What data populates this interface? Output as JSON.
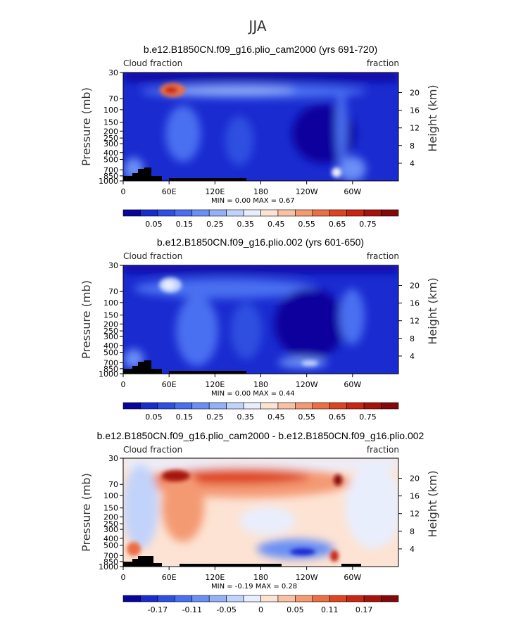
{
  "page": {
    "title": "JJA"
  },
  "chart_data": [
    {
      "type": "heatmap",
      "title": "b.e12.B1850CN.f09_g16.plio_cam2000 (yrs 691-720)",
      "left_label": "Cloud fraction",
      "right_label": "fraction",
      "ylabel": "Pressure (mb)",
      "y2label": "Height (km)",
      "x_ticks": [
        "0",
        "60E",
        "120E",
        "180",
        "120W",
        "60W"
      ],
      "y_ticks": [
        "30",
        "70",
        "100",
        "150",
        "200",
        "250",
        "300",
        "400",
        "500",
        "700",
        "850",
        "1000"
      ],
      "y2_ticks": [
        "20",
        "16",
        "12",
        "8",
        "4"
      ],
      "minmax": "MIN = 0.00 MAX = 0.67",
      "colorbar_labels": [
        "0.05",
        "0.15",
        "0.25",
        "0.35",
        "0.45",
        "0.55",
        "0.65",
        "0.75"
      ],
      "colorbar_colors": [
        "#08059c",
        "#1a2bd0",
        "#2e4fe0",
        "#4a6ff0",
        "#6b8ff5",
        "#93b0f8",
        "#c1d3fb",
        "#e9eefd",
        "#fde3d3",
        "#f9c1a4",
        "#f49a73",
        "#ec6e44",
        "#dd4421",
        "#c72612",
        "#a6130a",
        "#84080a"
      ]
    },
    {
      "type": "heatmap",
      "title": "b.e12.B1850CN.f09_g16.plio.002 (yrs 601-650)",
      "left_label": "Cloud fraction",
      "right_label": "fraction",
      "ylabel": "Pressure (mb)",
      "y2label": "Height (km)",
      "x_ticks": [
        "0",
        "60E",
        "120E",
        "180",
        "120W",
        "60W"
      ],
      "y_ticks": [
        "30",
        "70",
        "100",
        "150",
        "200",
        "250",
        "300",
        "400",
        "500",
        "700",
        "850",
        "1000"
      ],
      "y2_ticks": [
        "20",
        "16",
        "12",
        "8",
        "4"
      ],
      "minmax": "MIN = 0.00 MAX = 0.44",
      "colorbar_labels": [
        "0.05",
        "0.15",
        "0.25",
        "0.35",
        "0.45",
        "0.55",
        "0.65",
        "0.75"
      ],
      "colorbar_colors": [
        "#08059c",
        "#1a2bd0",
        "#2e4fe0",
        "#4a6ff0",
        "#6b8ff5",
        "#93b0f8",
        "#c1d3fb",
        "#e9eefd",
        "#fde3d3",
        "#f9c1a4",
        "#f49a73",
        "#ec6e44",
        "#dd4421",
        "#c72612",
        "#a6130a",
        "#84080a"
      ]
    },
    {
      "type": "heatmap",
      "title": "b.e12.B1850CN.f09_g16.plio_cam2000 - b.e12.B1850CN.f09_g16.plio.002",
      "left_label": "Cloud fraction",
      "right_label": "fraction",
      "ylabel": "Pressure (mb)",
      "y2label": "Height (km)",
      "x_ticks": [
        "0",
        "60E",
        "120E",
        "180",
        "120W",
        "60W"
      ],
      "y_ticks": [
        "30",
        "70",
        "100",
        "150",
        "200",
        "250",
        "300",
        "400",
        "500",
        "700",
        "850",
        "1000"
      ],
      "y2_ticks": [
        "20",
        "16",
        "12",
        "8",
        "4"
      ],
      "minmax": "MIN = -0.19 MAX = 0.28",
      "colorbar_labels": [
        "-0.17",
        "-0.11",
        "-0.05",
        "0",
        "0.05",
        "0.11",
        "0.17"
      ],
      "colorbar_colors": [
        "#08059c",
        "#1a2bd0",
        "#2e4fe0",
        "#4a6ff0",
        "#6b8ff5",
        "#93b0f8",
        "#c1d3fb",
        "#e9eefd",
        "#fde3d3",
        "#f9c1a4",
        "#f49a73",
        "#ec6e44",
        "#dd4421",
        "#c72612",
        "#a6130a",
        "#84080a"
      ]
    }
  ]
}
